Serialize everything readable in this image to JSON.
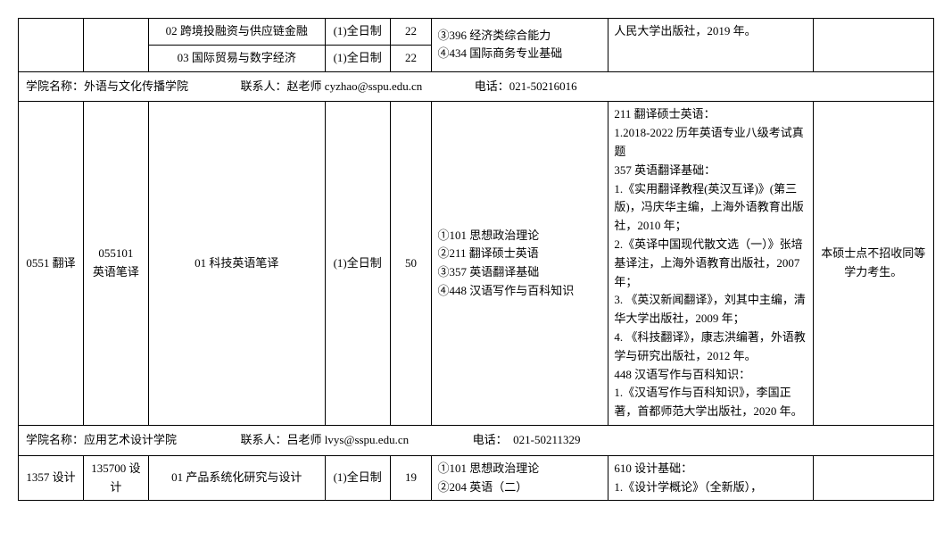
{
  "top_rows": [
    {
      "direction": "02 跨境投融资与供应链金融",
      "mode": "(1)全日制",
      "quota": "22",
      "subjects": "③396 经济类综合能力\n④434 国际商务专业基础",
      "refs": "人民大学出版社，2019 年。"
    },
    {
      "direction": "03 国际贸易与数字经济",
      "mode": "(1)全日制",
      "quota": "22"
    }
  ],
  "dept1": {
    "name_label": "学院名称：",
    "name": "外语与文化传播学院",
    "contact_label": "联系人：",
    "contact": "赵老师  cyzhao@sspu.edu.cn",
    "phone_label": "电话：",
    "phone": "021-50216016"
  },
  "row_translation": {
    "code": "0551 翻译",
    "subcode": "055101",
    "subname": "英语笔译",
    "direction": "01 科技英语笔译",
    "mode": "(1)全日制",
    "quota": "50",
    "subjects": "①101 思想政治理论\n②211 翻译硕士英语\n③357 英语翻译基础\n④448 汉语写作与百科知识",
    "refs": "211 翻译硕士英语：\n1.2018-2022 历年英语专业八级考试真题\n357 英语翻译基础：\n1.《实用翻译教程(英汉互译)》(第三版)，冯庆华主编，上海外语教育出版社，2010 年；\n2.《英译中国现代散文选（一）》张培基译注，上海外语教育出版社，2007 年；\n3. 《英汉新闻翻译》，刘其中主编，清华大学出版社，2009 年；\n4. 《科技翻译》，康志洪编著，外语教学与研究出版社，2012 年。\n448 汉语写作与百科知识：\n1.《汉语写作与百科知识》，李国正著，首都师范大学出版社，2020 年。",
    "note": "本硕士点不招收同等学力考生。"
  },
  "dept2": {
    "name_label": "学院名称：",
    "name": "应用艺术设计学院",
    "contact_label": "联系人：",
    "contact": "吕老师  lvys@sspu.edu.cn",
    "phone_label": "电话：",
    "phone": "021-50211329"
  },
  "row_design": {
    "code": "1357 设计",
    "subcode": "135700 设计",
    "direction": "01 产品系统化研究与设计",
    "mode": "(1)全日制",
    "quota": "19",
    "subjects": "①101 思想政治理论\n②204 英语（二）",
    "refs": "610 设计基础：\n1.《设计学概论》（全新版），"
  }
}
